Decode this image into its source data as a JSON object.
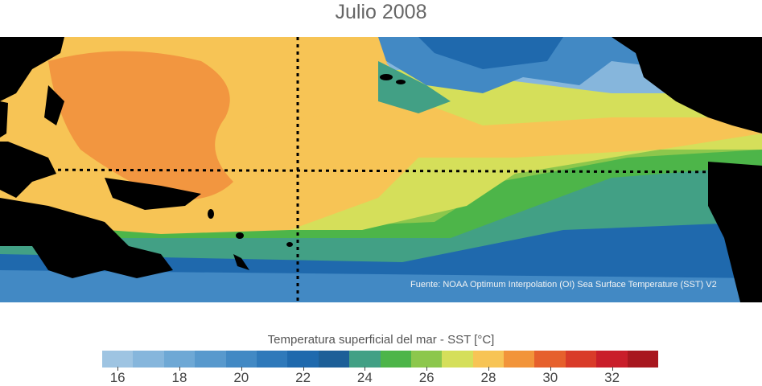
{
  "title": "Julio 2008",
  "source": "Fuente: NOAA Optimum Interpolation (OI) Sea Surface Temperature (SST) V2",
  "colorbar": {
    "title": "Temperatura superficial del mar - SST  [°C]",
    "colors": [
      "#9ec4e2",
      "#86b6dc",
      "#6ea8d5",
      "#5899cd",
      "#4289c4",
      "#2f79ba",
      "#1f69ad",
      "#1d5f98",
      "#42a085",
      "#4db549",
      "#8cc74c",
      "#d5df5a",
      "#f7c455",
      "#f2943a",
      "#e6602c",
      "#d93b29",
      "#c91e2a",
      "#a8171f"
    ],
    "tick_labels": [
      "16",
      "18",
      "20",
      "22",
      "24",
      "26",
      "28",
      "30",
      "32"
    ]
  },
  "map": {
    "colors": {
      "land": "#000000",
      "warm_pool": "#f29640",
      "orange_light": "#f7c455",
      "yellow": "#d5df5a",
      "green_light": "#8cc74c",
      "green": "#4db549",
      "teal": "#42a085",
      "blue_dark": "#1f69ad",
      "blue": "#4289c4",
      "blue_light": "#86b6dc"
    }
  }
}
